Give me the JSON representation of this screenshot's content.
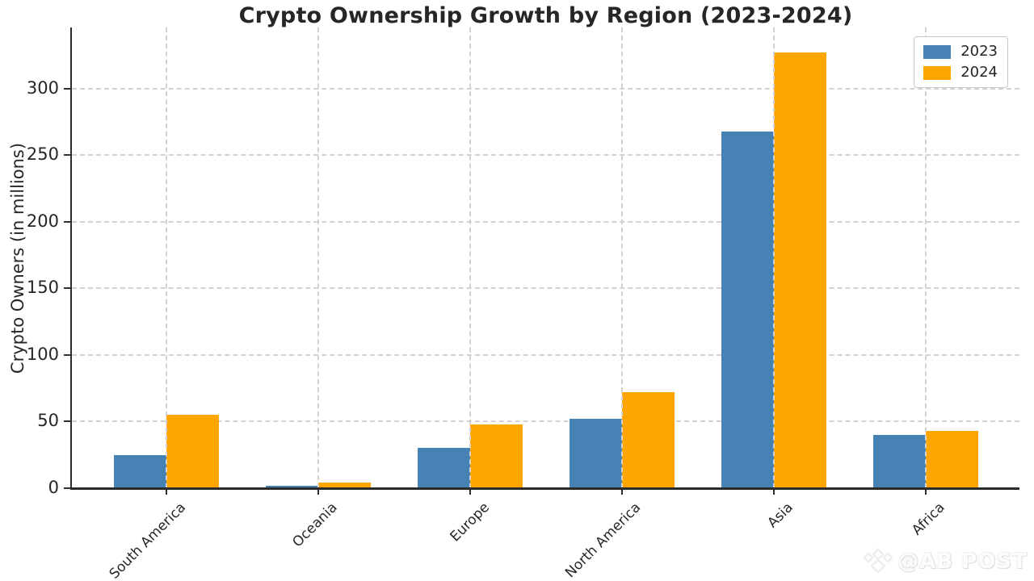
{
  "chart_data": {
    "type": "bar",
    "title": "Crypto Ownership Growth by Region (2023-2024)",
    "ylabel": "Crypto Owners (in millions)",
    "xlabel": "",
    "categories": [
      "South America",
      "Oceania",
      "Europe",
      "North America",
      "Asia",
      "Africa"
    ],
    "series": [
      {
        "name": "2023",
        "color": "#4682B4",
        "values": [
          25,
          2,
          30,
          52,
          268,
          40
        ]
      },
      {
        "name": "2024",
        "color": "#FFA500",
        "values": [
          55,
          4,
          48,
          72,
          327,
          43
        ]
      }
    ],
    "yticks": [
      0,
      50,
      100,
      150,
      200,
      250,
      300
    ],
    "ylim": [
      0,
      346
    ],
    "grid": "dashed-both-axes",
    "legend_position": "upper-right",
    "colors": {
      "grid": "#d2d2d2",
      "axis": "#2e2e2e",
      "text": "#262626",
      "background": "#ffffff"
    }
  },
  "watermark": {
    "text": "@AB POST",
    "icon": "diamond-crown-icon"
  }
}
